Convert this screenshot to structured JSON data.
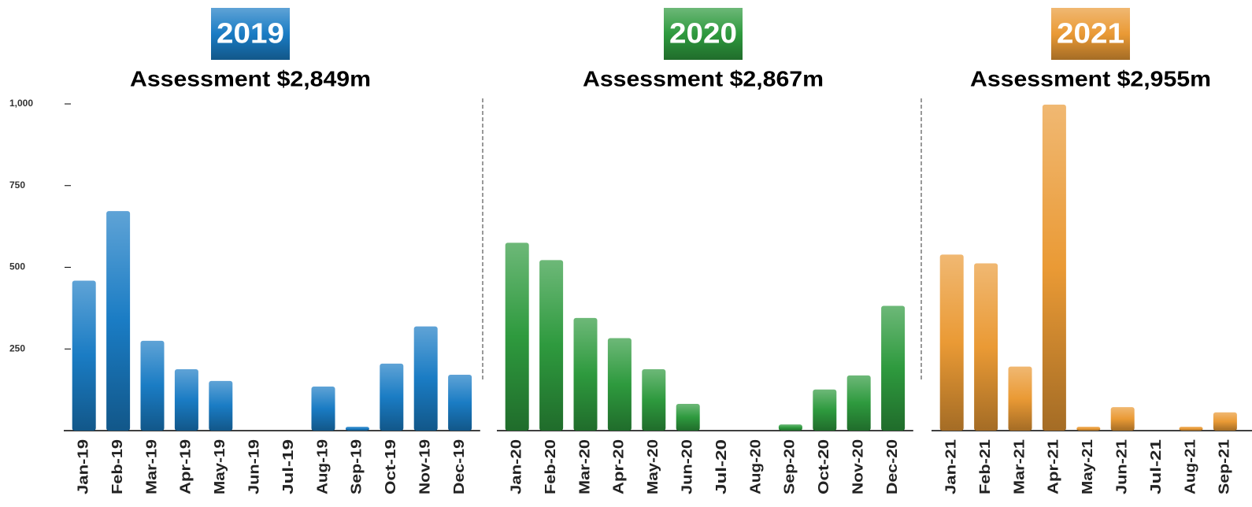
{
  "chart_data": [
    {
      "type": "bar",
      "title": "2019",
      "subtitle": "Assessment $2,849m",
      "color": "#1a7cc4",
      "categories": [
        "Jan-19",
        "Feb-19",
        "Mar-19",
        "Apr-19",
        "May-19",
        "Jun-19",
        "Jul-19",
        "Aug-19",
        "Sep-19",
        "Oct-19",
        "Nov-19",
        "Dec-19"
      ],
      "values": [
        459,
        672,
        275,
        188,
        152,
        0,
        0,
        135,
        12,
        205,
        319,
        171
      ],
      "ylim": [
        0,
        1000
      ],
      "yticks": [
        250,
        500,
        750,
        {
          "value": 1000,
          "label": "1,000"
        }
      ]
    },
    {
      "type": "bar",
      "title": "2020",
      "subtitle": "Assessment $2,867m",
      "color": "#2e9a3e",
      "categories": [
        "Jan-20",
        "Feb-20",
        "Mar-20",
        "Apr-20",
        "May-20",
        "Jun-20",
        "Jul-20",
        "Aug-20",
        "Sep-20",
        "Oct-20",
        "Nov-20",
        "Dec-20"
      ],
      "values": [
        575,
        522,
        345,
        283,
        188,
        82,
        0,
        0,
        19,
        126,
        169,
        382
      ]
    },
    {
      "type": "bar",
      "title": "2021",
      "subtitle": "Assessment $2,955m",
      "color": "#ea9a35",
      "categories": [
        "Jan-21",
        "Feb-21",
        "Mar-21",
        "Apr-21",
        "May-21",
        "Jun-21",
        "Jul-21",
        "Aug-21",
        "Sep-21"
      ],
      "values": [
        539,
        512,
        196,
        998,
        12,
        72,
        0,
        12,
        56
      ]
    }
  ]
}
